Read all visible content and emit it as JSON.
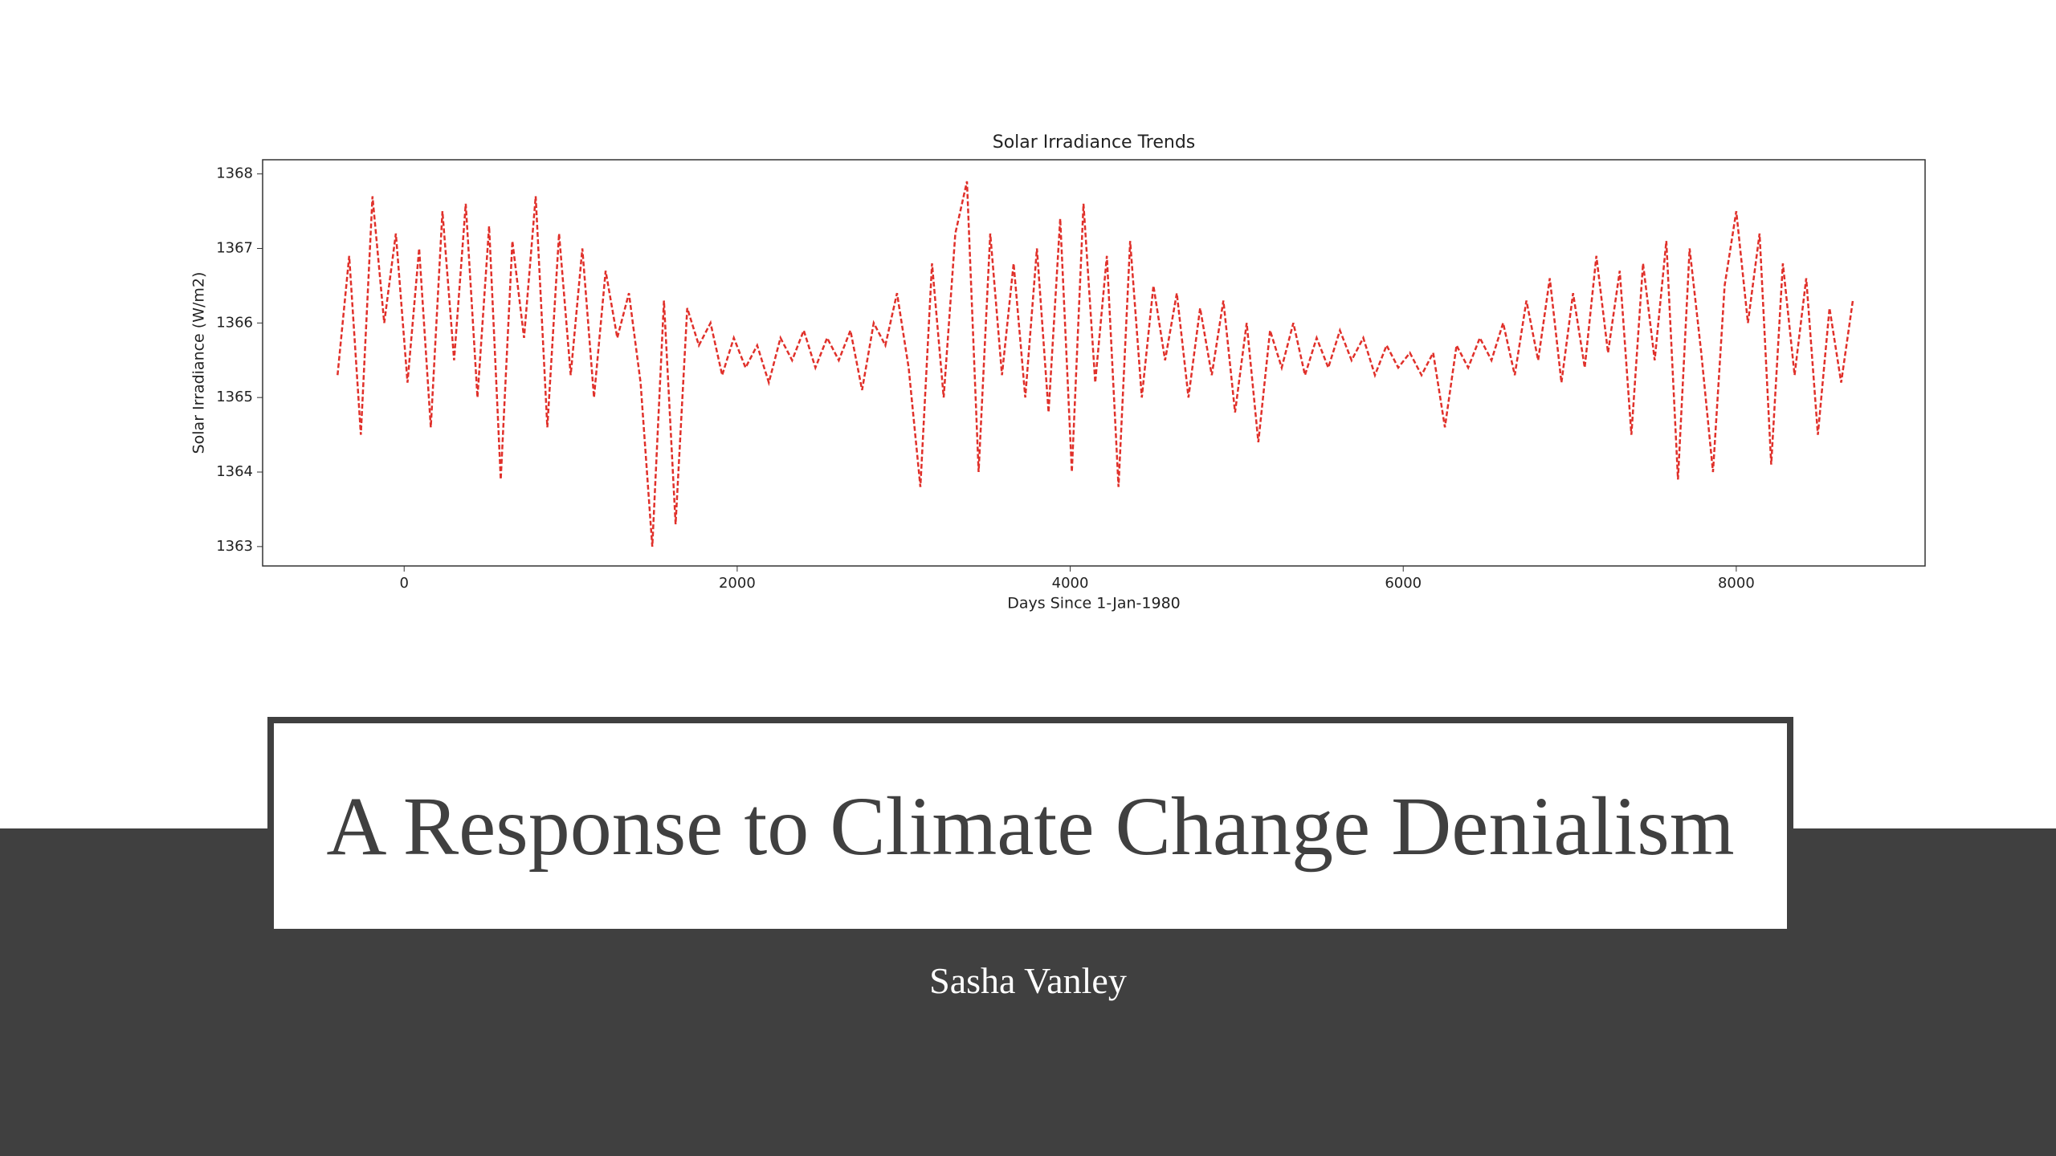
{
  "chart_data": {
    "type": "line",
    "title": "Solar Irradiance Trends",
    "xlabel": "Days Since 1-Jan-1980",
    "ylabel": "Solar Irradiance (W/m2)",
    "x": [
      -400,
      -330,
      -260,
      -190,
      -120,
      -50,
      20,
      90,
      160,
      230,
      300,
      370,
      440,
      510,
      580,
      650,
      720,
      790,
      860,
      930,
      1000,
      1070,
      1140,
      1210,
      1280,
      1350,
      1420,
      1490,
      1560,
      1630,
      1700,
      1770,
      1840,
      1910,
      1980,
      2050,
      2120,
      2190,
      2260,
      2330,
      2400,
      2470,
      2540,
      2610,
      2680,
      2750,
      2820,
      2890,
      2960,
      3030,
      3100,
      3170,
      3240,
      3310,
      3380,
      3450,
      3520,
      3590,
      3660,
      3730,
      3800,
      3870,
      3940,
      4010,
      4080,
      4150,
      4220,
      4290,
      4360,
      4430,
      4500,
      4570,
      4640,
      4710,
      4780,
      4850,
      4920,
      4990,
      5060,
      5130,
      5200,
      5270,
      5340,
      5410,
      5480,
      5550,
      5620,
      5690,
      5760,
      5830,
      5900,
      5970,
      6040,
      6110,
      6180,
      6250,
      6320,
      6390,
      6460,
      6530,
      6600,
      6670,
      6740,
      6810,
      6880,
      6950,
      7020,
      7090,
      7160,
      7230,
      7300,
      7370,
      7440,
      7510,
      7580,
      7650,
      7720,
      7790,
      7860,
      7930,
      8000,
      8070,
      8140,
      8210,
      8280,
      8350,
      8420,
      8490,
      8560,
      8630,
      8700
    ],
    "values": [
      1365.3,
      1366.9,
      1364.5,
      1367.7,
      1366.0,
      1367.2,
      1365.2,
      1367.0,
      1364.6,
      1367.5,
      1365.5,
      1367.6,
      1365.0,
      1367.3,
      1363.9,
      1367.1,
      1365.8,
      1367.7,
      1364.6,
      1367.2,
      1365.3,
      1367.0,
      1365.0,
      1366.7,
      1365.8,
      1366.4,
      1365.2,
      1363.0,
      1366.3,
      1363.3,
      1366.2,
      1365.7,
      1366.0,
      1365.3,
      1365.8,
      1365.4,
      1365.7,
      1365.2,
      1365.8,
      1365.5,
      1365.9,
      1365.4,
      1365.8,
      1365.5,
      1365.9,
      1365.1,
      1366.0,
      1365.7,
      1366.4,
      1365.4,
      1363.8,
      1366.8,
      1365.0,
      1367.2,
      1367.9,
      1364.0,
      1367.2,
      1365.3,
      1366.8,
      1365.0,
      1367.0,
      1364.8,
      1367.4,
      1364.0,
      1367.6,
      1365.2,
      1366.9,
      1363.8,
      1367.1,
      1365.0,
      1366.5,
      1365.5,
      1366.4,
      1365.0,
      1366.2,
      1365.3,
      1366.3,
      1364.8,
      1366.0,
      1364.4,
      1365.9,
      1365.4,
      1366.0,
      1365.3,
      1365.8,
      1365.4,
      1365.9,
      1365.5,
      1365.8,
      1365.3,
      1365.7,
      1365.4,
      1365.6,
      1365.3,
      1365.6,
      1364.6,
      1365.7,
      1365.4,
      1365.8,
      1365.5,
      1366.0,
      1365.3,
      1366.3,
      1365.5,
      1366.6,
      1365.2,
      1366.4,
      1365.4,
      1366.9,
      1365.6,
      1366.7,
      1364.5,
      1366.8,
      1365.5,
      1367.1,
      1363.9,
      1367.0,
      1365.6,
      1364.0,
      1366.5,
      1367.5,
      1366.0,
      1367.2,
      1364.1,
      1366.8,
      1365.3,
      1366.6,
      1364.5,
      1366.2,
      1365.2,
      1366.3
    ],
    "color": "#e0302a",
    "linestyle": "dashed",
    "xlim": [
      -850,
      9134
    ],
    "ylim": [
      1362.74,
      1368.19
    ],
    "xticks": [
      0,
      2000,
      4000,
      6000,
      8000
    ],
    "yticks": [
      1363,
      1364,
      1365,
      1366,
      1367,
      1368
    ]
  },
  "slide": {
    "title": "A Response to Climate Change Denialism",
    "author": "Sasha Vanley"
  }
}
